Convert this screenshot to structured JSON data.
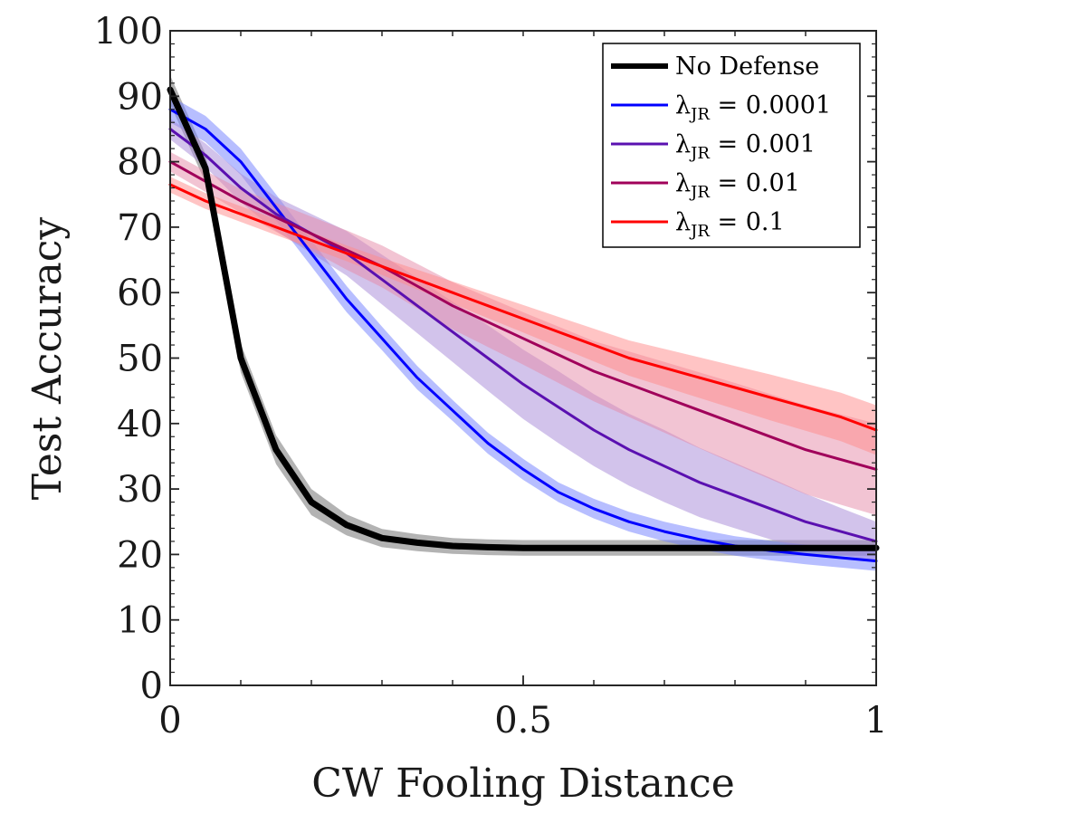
{
  "chart_data": {
    "type": "line",
    "title": "",
    "xlabel": "CW Fooling Distance",
    "ylabel": "Test Accuracy",
    "xlim": [
      0,
      1
    ],
    "ylim": [
      0,
      100
    ],
    "x_ticks": [
      0,
      0.5,
      1
    ],
    "x_tick_labels": [
      "0",
      "0.5",
      "1"
    ],
    "y_ticks": [
      0,
      10,
      20,
      30,
      40,
      50,
      60,
      70,
      80,
      90,
      100
    ],
    "y_tick_labels": [
      "0",
      "10",
      "20",
      "30",
      "40",
      "50",
      "60",
      "70",
      "80",
      "90",
      "100"
    ],
    "grid": false,
    "legend_position": "top-right",
    "x": [
      0,
      0.05,
      0.1,
      0.15,
      0.2,
      0.25,
      0.3,
      0.35,
      0.4,
      0.45,
      0.5,
      0.55,
      0.6,
      0.65,
      0.7,
      0.75,
      0.8,
      0.85,
      0.9,
      0.95,
      1.0
    ],
    "series": [
      {
        "name": "No Defense",
        "legend_label": "No Defense",
        "color": "#000000",
        "band_color": "#999999",
        "thick": true,
        "values": [
          91,
          79,
          50,
          36,
          28,
          24.5,
          22.5,
          21.8,
          21.3,
          21.1,
          21,
          21,
          21,
          21,
          21,
          21,
          21,
          21,
          21,
          21,
          21
        ],
        "band": [
          2.2,
          2.2,
          2.2,
          2.2,
          2,
          1.6,
          1.4,
          1.3,
          1.2,
          1.2,
          1.2,
          1.2,
          1.2,
          1.2,
          1.2,
          1.2,
          1.2,
          1.2,
          1.2,
          1.2,
          1.2
        ]
      },
      {
        "name": "lambda_JR = 0.0001",
        "legend_label": "= 0.0001",
        "color": "#0000ff",
        "band_color": "#6f7dff",
        "thick": false,
        "values": [
          88,
          85,
          80,
          73,
          66,
          59,
          53,
          47,
          42,
          37,
          33,
          29.5,
          27,
          25,
          23.5,
          22.3,
          21.3,
          20.6,
          20,
          19.5,
          19
        ],
        "band": [
          2,
          2,
          2,
          2,
          2,
          2,
          1.8,
          1.8,
          1.6,
          1.6,
          1.6,
          1.5,
          1.5,
          1.5,
          1.5,
          1.5,
          1.5,
          1.5,
          1.5,
          1.5,
          1.5
        ]
      },
      {
        "name": "lambda_JR = 0.001",
        "legend_label": "= 0.001",
        "color": "#5a10b0",
        "band_color": "#a687d8",
        "thick": false,
        "values": [
          85,
          81,
          76,
          72,
          69,
          66,
          62,
          58,
          54,
          50,
          46,
          42.5,
          39,
          36,
          33.5,
          31,
          29,
          27,
          25,
          23.5,
          22
        ],
        "band": [
          1.6,
          1.8,
          2.2,
          2.6,
          3,
          3.4,
          3.8,
          4.2,
          4.6,
          5,
          5.3,
          5.5,
          5.5,
          5.5,
          5.5,
          5.3,
          5,
          4.7,
          4.3,
          3.6,
          3
        ]
      },
      {
        "name": "lambda_JR = 0.01",
        "legend_label": "= 0.01",
        "color": "#a0005a",
        "band_color": "#e58aa8",
        "thick": false,
        "values": [
          80,
          77,
          74,
          71.5,
          69,
          66.5,
          64,
          61,
          58,
          55.5,
          53,
          50.5,
          48,
          46,
          44,
          42,
          40,
          38,
          36,
          34.5,
          33
        ],
        "band": [
          1.5,
          1.6,
          1.8,
          2.2,
          2.6,
          3,
          3.2,
          3.4,
          3.6,
          3.8,
          4,
          4.3,
          4.6,
          5,
          5.4,
          5.8,
          6.2,
          6.5,
          6.8,
          6.9,
          7
        ]
      },
      {
        "name": "lambda_JR = 0.1",
        "legend_label": "= 0.1",
        "color": "#ff0000",
        "band_color": "#ff8a8a",
        "thick": false,
        "values": [
          76.5,
          74,
          72,
          70,
          68,
          66,
          64,
          62,
          60,
          58,
          56,
          54,
          52,
          50,
          48.5,
          47,
          45.5,
          44,
          42.5,
          41,
          39
        ],
        "band": [
          1.2,
          1.2,
          1.2,
          1.2,
          1.2,
          1.2,
          1.3,
          1.5,
          1.7,
          1.9,
          2.1,
          2.3,
          2.5,
          2.7,
          2.9,
          3.1,
          3.3,
          3.5,
          3.6,
          3.7,
          3.8
        ]
      }
    ]
  },
  "legend": {
    "lambda_symbol": "λ",
    "subscript": "JR"
  }
}
